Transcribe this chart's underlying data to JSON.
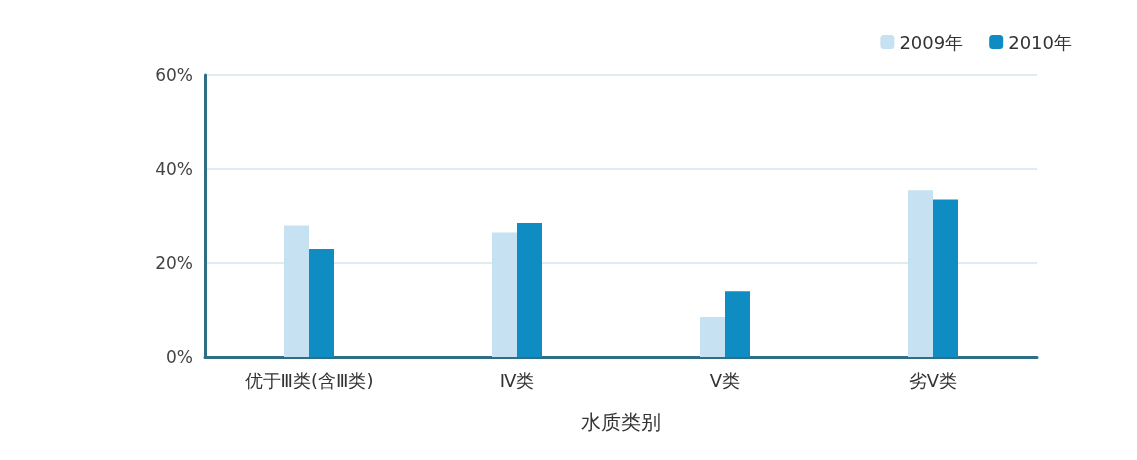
{
  "chart_data": {
    "type": "bar",
    "xlabel": "水质类别",
    "categories": [
      "优于Ⅲ类(含Ⅲ类)",
      "Ⅳ类",
      "Ⅴ类",
      "劣Ⅴ类"
    ],
    "series": [
      {
        "name": "2009年",
        "color": "#c6e1f1",
        "values": [
          28,
          26.5,
          8.5,
          35.5
        ]
      },
      {
        "name": "2010年",
        "color": "#0f8dc2",
        "values": [
          23,
          28.5,
          14,
          33.5
        ]
      }
    ],
    "ylim": [
      0,
      60
    ],
    "yticks": [
      {
        "value": 0,
        "label": "0%"
      },
      {
        "value": 20,
        "label": "20%"
      },
      {
        "value": 40,
        "label": "40%"
      },
      {
        "value": 60,
        "label": "60%"
      }
    ],
    "grid": "y",
    "legend": "top right"
  }
}
